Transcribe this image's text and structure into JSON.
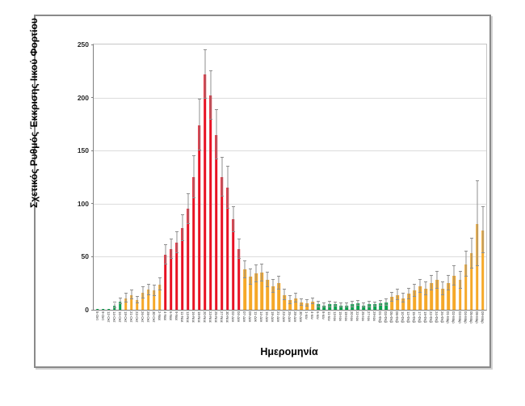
{
  "chart_data": {
    "type": "bar",
    "title": "",
    "ylabel": "Σχετικός Ρυθμός Έκκρισης Ιικού Φορτίου",
    "xlabel": "Ημερομηνία",
    "ylim": [
      0,
      250
    ],
    "yticks": [
      0,
      50,
      100,
      150,
      200,
      250
    ],
    "grid": true,
    "legend": false,
    "bars": [
      {
        "label": "5-Οκτ",
        "value": 1,
        "error": 0,
        "color": "green"
      },
      {
        "label": "9-Οκτ",
        "value": 1,
        "error": 0,
        "color": "green"
      },
      {
        "label": "12-Οκτ",
        "value": 1,
        "error": 0,
        "color": "green"
      },
      {
        "label": "14-Οκτ",
        "value": 4,
        "error": 2.5,
        "color": "green"
      },
      {
        "label": "16-Οκτ",
        "value": 8,
        "error": 3,
        "color": "green"
      },
      {
        "label": "19-Οκτ",
        "value": 11,
        "error": 4,
        "color": "orange"
      },
      {
        "label": "21-Οκτ",
        "value": 14,
        "error": 4,
        "color": "orange"
      },
      {
        "label": "23-Οκτ",
        "value": 9,
        "error": 3,
        "color": "orange"
      },
      {
        "label": "26-Οκτ",
        "value": 16,
        "error": 5,
        "color": "orange"
      },
      {
        "label": "28-Οκτ",
        "value": 19,
        "error": 5,
        "color": "orange"
      },
      {
        "label": "30-Οκτ",
        "value": 18,
        "error": 5,
        "color": "orange"
      },
      {
        "label": "2-Νοε",
        "value": 24,
        "error": 6,
        "color": "orange"
      },
      {
        "label": "4-Νοε",
        "value": 52,
        "error": 9,
        "color": "red"
      },
      {
        "label": "6-Νοε",
        "value": 57,
        "error": 9,
        "color": "red"
      },
      {
        "label": "9-Νοε",
        "value": 63,
        "error": 10,
        "color": "red"
      },
      {
        "label": "11-Νοε",
        "value": 77,
        "error": 12,
        "color": "red"
      },
      {
        "label": "13-Νοε",
        "value": 95,
        "error": 14,
        "color": "red"
      },
      {
        "label": "16-Νοε",
        "value": 125,
        "error": 20,
        "color": "red"
      },
      {
        "label": "18-Νοε",
        "value": 174,
        "error": 24,
        "color": "red"
      },
      {
        "label": "20-Νοε",
        "value": 222,
        "error": 23,
        "color": "red"
      },
      {
        "label": "23-Νοε",
        "value": 202,
        "error": 23,
        "color": "red"
      },
      {
        "label": "25-Νοε",
        "value": 165,
        "error": 23,
        "color": "red"
      },
      {
        "label": "27-Νοε",
        "value": 125,
        "error": 18,
        "color": "red"
      },
      {
        "label": "30-Νοε",
        "value": 115,
        "error": 20,
        "color": "red"
      },
      {
        "label": "02-Δεκ",
        "value": 85,
        "error": 12,
        "color": "red"
      },
      {
        "label": "04-Δεκ",
        "value": 57,
        "error": 9,
        "color": "red"
      },
      {
        "label": "07-Δεκ",
        "value": 38,
        "error": 8,
        "color": "orange"
      },
      {
        "label": "09-Δεκ",
        "value": 31,
        "error": 7,
        "color": "orange"
      },
      {
        "label": "11-Δεκ",
        "value": 34,
        "error": 8,
        "color": "orange"
      },
      {
        "label": "14-Δεκ",
        "value": 35,
        "error": 8,
        "color": "orange"
      },
      {
        "label": "16-Δεκ",
        "value": 28,
        "error": 7,
        "color": "orange"
      },
      {
        "label": "18-Δεκ",
        "value": 22,
        "error": 6,
        "color": "orange"
      },
      {
        "label": "21-Δεκ",
        "value": 25,
        "error": 6,
        "color": "orange"
      },
      {
        "label": "23-Δεκ",
        "value": 14,
        "error": 5,
        "color": "orange"
      },
      {
        "label": "25-Δεκ",
        "value": 9,
        "error": 4,
        "color": "orange"
      },
      {
        "label": "28-Δεκ",
        "value": 11,
        "error": 4,
        "color": "orange"
      },
      {
        "label": "30-Δεκ",
        "value": 7,
        "error": 3,
        "color": "orange"
      },
      {
        "label": "1-Ιαν",
        "value": 6,
        "error": 3,
        "color": "orange"
      },
      {
        "label": "4-Ιαν",
        "value": 8,
        "error": 3,
        "color": "orange"
      },
      {
        "label": "6-Ιαν",
        "value": 5,
        "error": 2.5,
        "color": "green"
      },
      {
        "label": "8-Ιαν",
        "value": 4,
        "error": 2,
        "color": "green"
      },
      {
        "label": "11-Ιαν",
        "value": 5,
        "error": 2.5,
        "color": "green"
      },
      {
        "label": "13-Ιαν",
        "value": 5,
        "error": 2,
        "color": "green"
      },
      {
        "label": "15-Ιαν",
        "value": 4,
        "error": 2,
        "color": "green"
      },
      {
        "label": "18-Ιαν",
        "value": 4,
        "error": 2,
        "color": "green"
      },
      {
        "label": "20-Ιαν",
        "value": 5,
        "error": 2.5,
        "color": "green"
      },
      {
        "label": "22-Ιαν",
        "value": 6,
        "error": 2.5,
        "color": "green"
      },
      {
        "label": "25-Ιαν",
        "value": 4,
        "error": 2,
        "color": "green"
      },
      {
        "label": "27-Ιαν",
        "value": 5,
        "error": 2.5,
        "color": "green"
      },
      {
        "label": "29-Ιαν",
        "value": 5,
        "error": 2,
        "color": "green"
      },
      {
        "label": "01-Φεβ",
        "value": 6,
        "error": 2.5,
        "color": "green"
      },
      {
        "label": "03-Φεβ",
        "value": 7,
        "error": 3,
        "color": "green"
      },
      {
        "label": "05-Φεβ",
        "value": 12,
        "error": 4,
        "color": "orange"
      },
      {
        "label": "08-Φεβ",
        "value": 14,
        "error": 5,
        "color": "orange"
      },
      {
        "label": "10-Φεβ",
        "value": 11,
        "error": 4,
        "color": "orange"
      },
      {
        "label": "12-Φεβ",
        "value": 15,
        "error": 5,
        "color": "orange"
      },
      {
        "label": "15-Φεβ",
        "value": 18,
        "error": 6,
        "color": "orange"
      },
      {
        "label": "17-Φεβ",
        "value": 22,
        "error": 6,
        "color": "orange"
      },
      {
        "label": "19-Φεβ",
        "value": 20,
        "error": 6,
        "color": "orange"
      },
      {
        "label": "22-Φεβ",
        "value": 25,
        "error": 7,
        "color": "orange"
      },
      {
        "label": "24-Φεβ",
        "value": 28,
        "error": 8,
        "color": "orange"
      },
      {
        "label": "26-Φεβ",
        "value": 20,
        "error": 6,
        "color": "orange"
      },
      {
        "label": "01-Μαρ",
        "value": 25,
        "error": 7,
        "color": "orange"
      },
      {
        "label": "02-Μαρ",
        "value": 32,
        "error": 9,
        "color": "orange"
      },
      {
        "label": "03-Μαρ",
        "value": 28,
        "error": 8,
        "color": "orange"
      },
      {
        "label": "04-Μαρ",
        "value": 43,
        "error": 12,
        "color": "orange"
      },
      {
        "label": "05-Μαρ",
        "value": 53,
        "error": 14,
        "color": "orange"
      },
      {
        "label": "08-Μαρ",
        "value": 81,
        "error": 40,
        "color": "orange"
      },
      {
        "label": "09-Μαρ",
        "value": 75,
        "error": 22,
        "color": "orange"
      }
    ]
  },
  "colors": {
    "red": "#e81123",
    "orange": "#f5a828",
    "green": "#0ca24e",
    "whisker": "#8f8f8f",
    "gridline": "#dcdcdc",
    "axis": "#7f7f7f",
    "panel_border": "#8a8a8a"
  }
}
